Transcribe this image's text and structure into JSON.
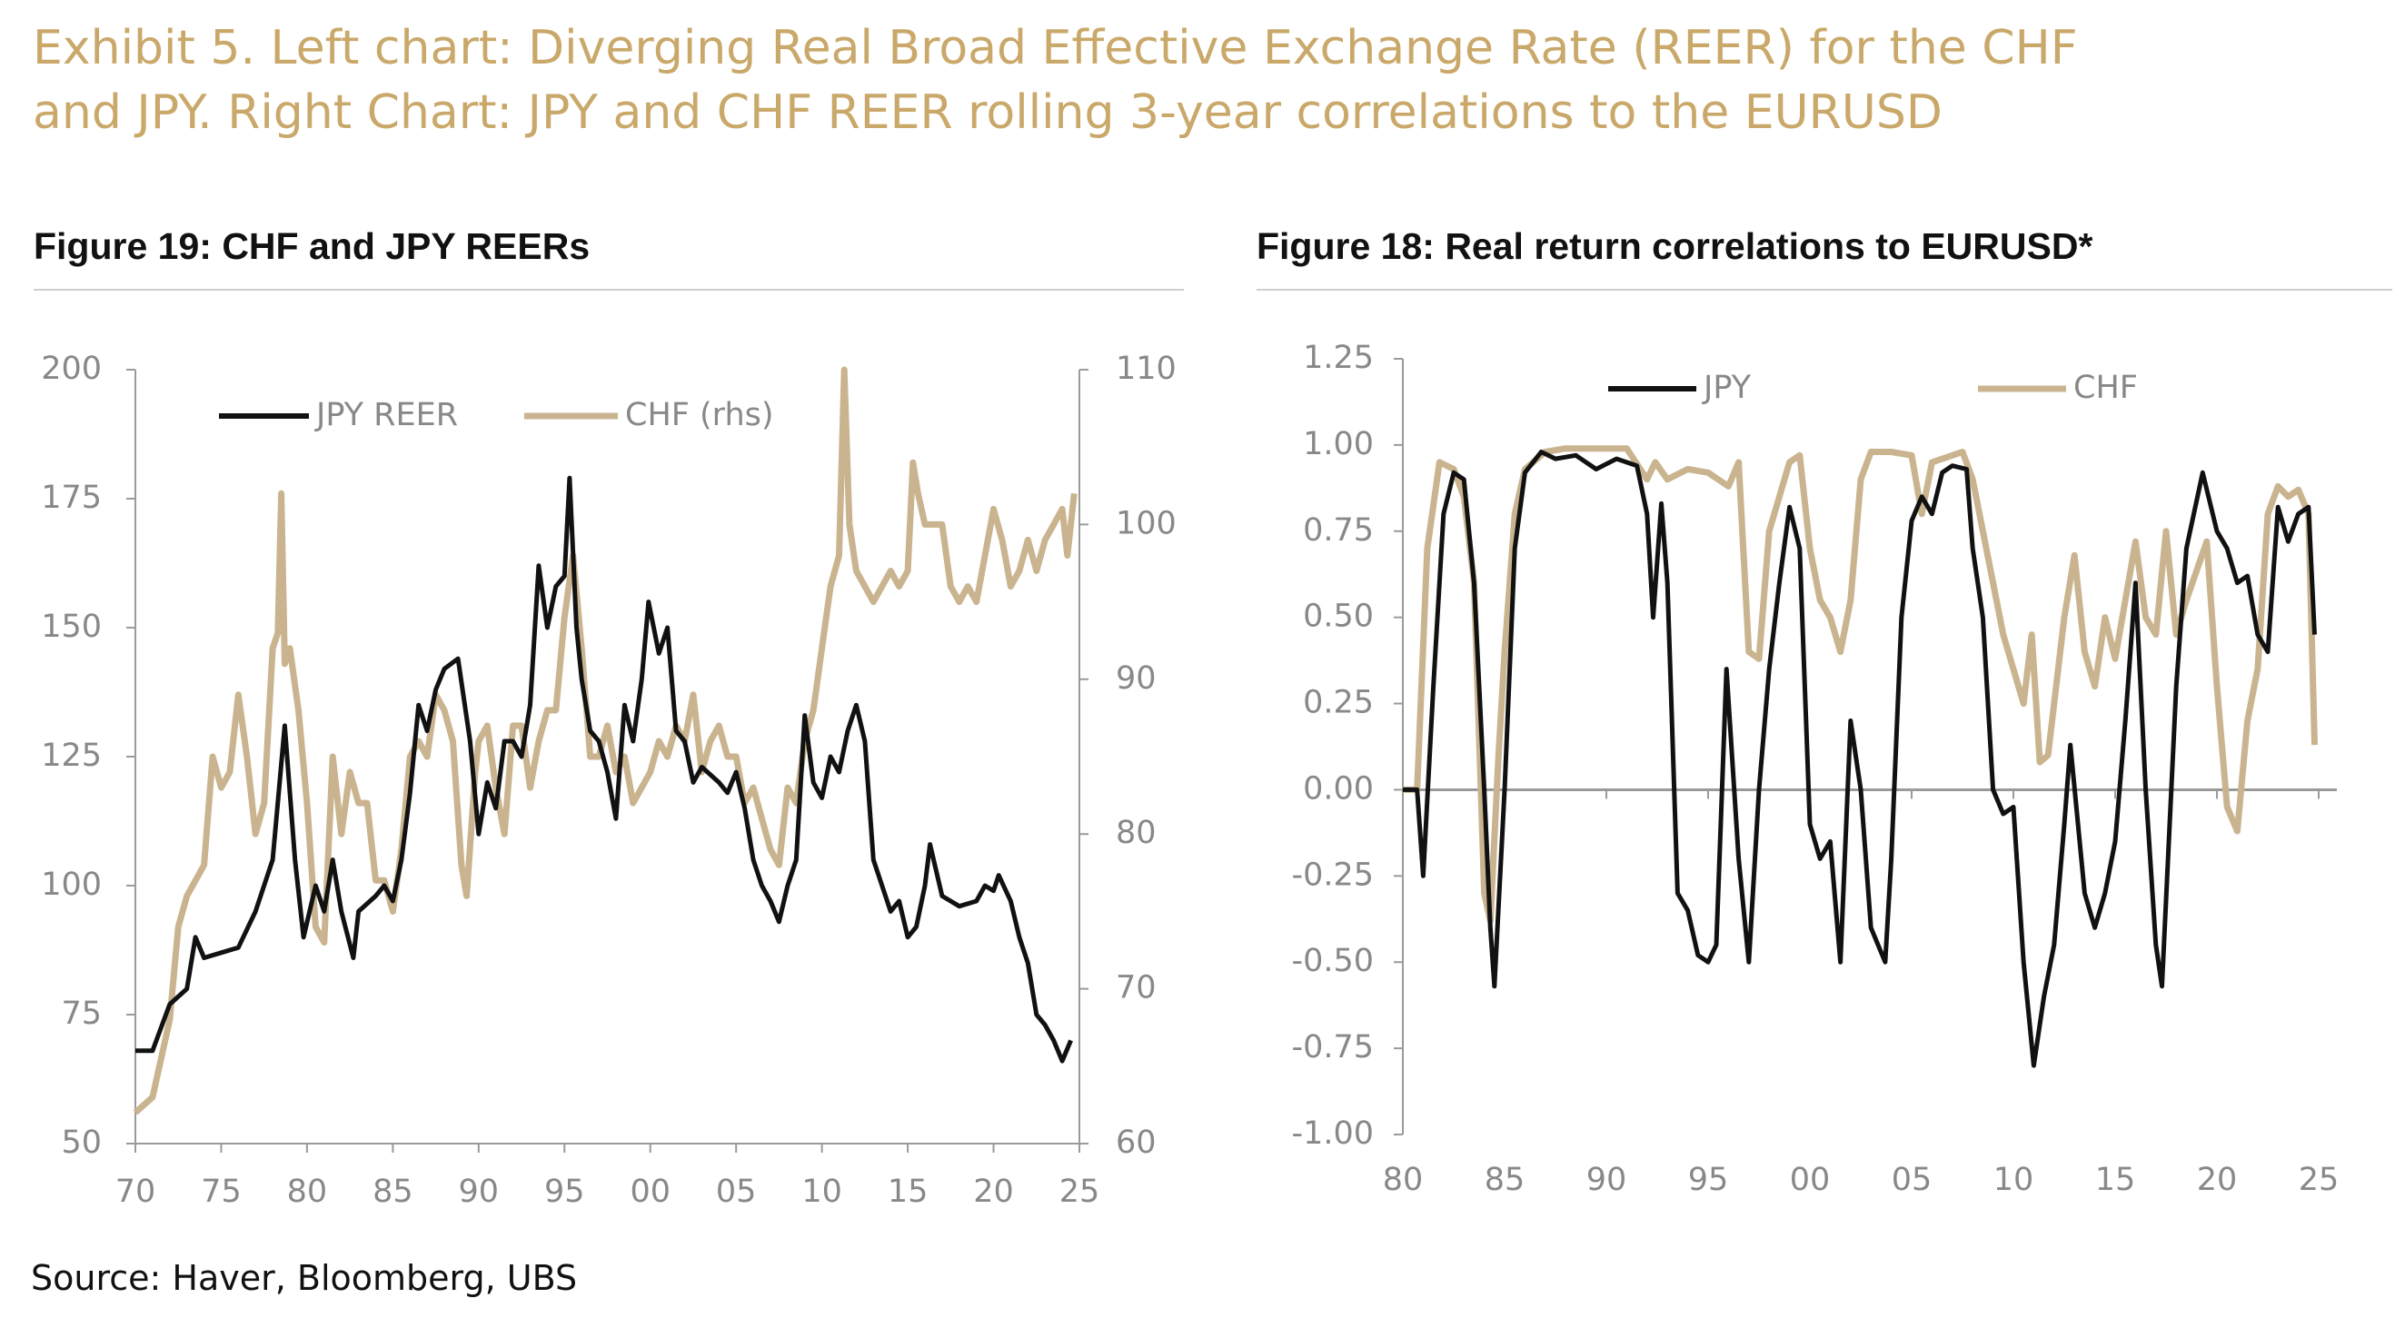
{
  "exhibit_title": [
    "Exhibit 5. Left chart: Diverging Real Broad Effective Exchange Rate (REER) for the CHF",
    "and JPY. Right Chart: JPY and CHF REER rolling 3-year correlations to the EURUSD"
  ],
  "source": "Source: Haver, Bloomberg, UBS",
  "colors": {
    "jpy": "#111111",
    "chf": "#c9b48f",
    "title": "#c9a86a"
  },
  "chart_data": [
    {
      "type": "line",
      "title": "Figure 19: CHF and JPY REERs",
      "xlim": [
        1970,
        2025
      ],
      "x_ticks": [
        "70",
        "75",
        "80",
        "85",
        "90",
        "95",
        "00",
        "05",
        "10",
        "15",
        "20",
        "25"
      ],
      "ylim": [
        50,
        200
      ],
      "y_ticks": [
        "200",
        "175",
        "150",
        "125",
        "100",
        "75",
        "50"
      ],
      "y2lim": [
        60,
        110
      ],
      "y2_ticks": [
        "110",
        "100",
        "90",
        "80",
        "70",
        "60"
      ],
      "legend": "top-left",
      "grid": false,
      "series": [
        {
          "name": "JPY REER",
          "axis": "left",
          "color": "#111111",
          "x": [
            1970,
            1971,
            1972,
            1973,
            1973.5,
            1974,
            1975,
            1976,
            1977,
            1978,
            1978.7,
            1979.3,
            1979.8,
            1980.5,
            1981,
            1981.5,
            1982,
            1982.7,
            1983,
            1984,
            1984.5,
            1985,
            1985.5,
            1986,
            1986.5,
            1987,
            1987.5,
            1988,
            1988.8,
            1989.5,
            1990,
            1990.5,
            1991,
            1991.5,
            1992,
            1992.5,
            1993,
            1993.5,
            1994,
            1994.5,
            1995,
            1995.3,
            1995.7,
            1996,
            1996.5,
            1997,
            1997.5,
            1998,
            1998.5,
            1999,
            1999.5,
            1999.9,
            2000.5,
            2001,
            2001.5,
            2002,
            2002.5,
            2003,
            2004,
            2004.5,
            2005,
            2005.5,
            2006,
            2006.5,
            2007,
            2007.5,
            2008,
            2008.5,
            2009,
            2009.5,
            2010,
            2010.5,
            2011,
            2011.5,
            2012,
            2012.5,
            2013,
            2013.5,
            2014,
            2014.5,
            2015,
            2015.5,
            2016,
            2016.3,
            2017,
            2018,
            2019,
            2019.5,
            2020,
            2020.3,
            2021,
            2021.5,
            2022,
            2022.5,
            2023,
            2023.5,
            2024,
            2024.5
          ],
          "y": [
            68,
            68,
            77,
            80,
            90,
            86,
            87,
            88,
            95,
            105,
            131,
            105,
            90,
            100,
            95,
            105,
            95,
            86,
            95,
            98,
            100,
            97,
            105,
            118,
            135,
            130,
            138,
            142,
            144,
            128,
            110,
            120,
            115,
            128,
            128,
            125,
            135,
            162,
            150,
            158,
            160,
            179,
            150,
            140,
            130,
            128,
            122,
            113,
            135,
            128,
            140,
            155,
            145,
            150,
            130,
            128,
            120,
            123,
            120,
            118,
            122,
            115,
            105,
            100,
            97,
            93,
            100,
            105,
            133,
            120,
            117,
            125,
            122,
            130,
            135,
            128,
            105,
            100,
            95,
            97,
            90,
            92,
            100,
            108,
            98,
            96,
            97,
            100,
            99,
            102,
            97,
            90,
            85,
            75,
            73,
            70,
            66,
            70
          ]
        },
        {
          "name": "CHF (rhs)",
          "axis": "right",
          "color": "#c9b48f",
          "x": [
            1970,
            1971,
            1972,
            1972.5,
            1973,
            1974,
            1974.5,
            1975,
            1975.5,
            1976,
            1976.5,
            1977,
            1977.5,
            1978,
            1978.3,
            1978.5,
            1978.7,
            1979,
            1979.5,
            1980,
            1980.5,
            1981,
            1981.5,
            1982,
            1982.5,
            1983,
            1983.5,
            1984,
            1984.5,
            1985,
            1985.5,
            1986,
            1986.5,
            1987,
            1987.5,
            1988,
            1988.5,
            1989,
            1989.3,
            1989.8,
            1990,
            1990.5,
            1991,
            1991.5,
            1992,
            1992.5,
            1993,
            1993.5,
            1994,
            1994.5,
            1995,
            1995.5,
            1996,
            1996.5,
            1997,
            1997.5,
            1998,
            1998.5,
            1999,
            1999.5,
            2000,
            2000.5,
            2001,
            2001.5,
            2002,
            2002.5,
            2003,
            2003.5,
            2004,
            2004.5,
            2005,
            2005.5,
            2006,
            2006.5,
            2007,
            2007.5,
            2008,
            2008.5,
            2009,
            2009.5,
            2010,
            2010.5,
            2011,
            2011.3,
            2011.6,
            2012,
            2012.5,
            2013,
            2013.5,
            2014,
            2014.5,
            2015,
            2015.3,
            2015.6,
            2016,
            2016.5,
            2017,
            2017.5,
            2018,
            2018.5,
            2019,
            2019.5,
            2020,
            2020.5,
            2021,
            2021.5,
            2022,
            2022.5,
            2023,
            2023.5,
            2024,
            2024.3,
            2024.7
          ],
          "y": [
            62,
            63,
            68,
            74,
            76,
            78,
            85,
            83,
            84,
            89,
            85,
            80,
            82,
            92,
            93,
            102,
            91,
            92,
            88,
            82,
            74,
            73,
            85,
            80,
            84,
            82,
            82,
            77,
            77,
            75,
            79,
            85,
            86,
            85,
            89,
            88,
            86,
            78,
            76,
            84,
            86,
            87,
            83,
            80,
            87,
            87,
            83,
            86,
            88,
            88,
            94,
            98,
            92,
            85,
            85,
            87,
            84,
            85,
            82,
            83,
            84,
            86,
            85,
            87,
            86,
            89,
            84,
            86,
            87,
            85,
            85,
            82,
            83,
            81,
            79,
            78,
            83,
            82,
            86,
            88,
            92,
            96,
            98,
            110,
            100,
            97,
            96,
            95,
            96,
            97,
            96,
            97,
            104,
            102,
            100,
            100,
            100,
            96,
            95,
            96,
            95,
            98,
            101,
            99,
            96,
            97,
            99,
            97,
            99,
            100,
            101,
            98,
            102
          ]
        }
      ]
    },
    {
      "type": "line",
      "title": "Figure 18: Real return correlations to EURUSD*",
      "xlim": [
        1980,
        2025
      ],
      "x_ticks": [
        "80",
        "85",
        "90",
        "95",
        "00",
        "05",
        "10",
        "15",
        "20",
        "25"
      ],
      "ylim": [
        -1.0,
        1.25
      ],
      "y_ticks": [
        "1.25",
        "1.00",
        "0.75",
        "0.50",
        "0.25",
        "0.00",
        "-0.25",
        "-0.50",
        "-0.75",
        "-1.00"
      ],
      "legend": "top",
      "grid": false,
      "series": [
        {
          "name": "JPY",
          "color": "#111111",
          "x": [
            1980,
            1980.7,
            1981,
            1981.5,
            1982,
            1982.5,
            1983,
            1983.5,
            1984,
            1984.3,
            1984.5,
            1985,
            1985.5,
            1986,
            1986.8,
            1987.5,
            1988.5,
            1989.5,
            1990.5,
            1991.5,
            1992,
            1992.3,
            1992.7,
            1993,
            1993.5,
            1994,
            1994.5,
            1995,
            1995.4,
            1995.9,
            1996.5,
            1997,
            1997.5,
            1998,
            1998.5,
            1999,
            1999.5,
            2000,
            2000.5,
            2001,
            2001.5,
            2002,
            2002.5,
            2003,
            2003.7,
            2004,
            2004.5,
            2005,
            2005.5,
            2006,
            2006.5,
            2007,
            2007.7,
            2008,
            2008.5,
            2009,
            2009.5,
            2010,
            2010.5,
            2011,
            2011.5,
            2012,
            2012.5,
            2012.8,
            2013.5,
            2014,
            2014.5,
            2015,
            2015.5,
            2016,
            2016.5,
            2017,
            2017.3,
            2018,
            2018.5,
            2019.3,
            2020,
            2020.5,
            2021,
            2021.5,
            2022,
            2022.5,
            2023,
            2023.5,
            2024,
            2024.5,
            2024.8
          ],
          "y": [
            0,
            0,
            -0.25,
            0.3,
            0.8,
            0.92,
            0.9,
            0.6,
            0,
            -0.4,
            -0.57,
            0,
            0.7,
            0.92,
            0.98,
            0.96,
            0.97,
            0.93,
            0.96,
            0.94,
            0.8,
            0.5,
            0.83,
            0.6,
            -0.3,
            -0.35,
            -0.48,
            -0.5,
            -0.45,
            0.35,
            -0.2,
            -0.5,
            0,
            0.35,
            0.6,
            0.82,
            0.7,
            -0.1,
            -0.2,
            -0.15,
            -0.5,
            0.2,
            0,
            -0.4,
            -0.5,
            -0.2,
            0.5,
            0.78,
            0.85,
            0.8,
            0.92,
            0.94,
            0.93,
            0.7,
            0.5,
            0,
            -0.07,
            -0.05,
            -0.5,
            -0.8,
            -0.6,
            -0.45,
            -0.1,
            0.13,
            -0.3,
            -0.4,
            -0.3,
            -0.15,
            0.2,
            0.6,
            0,
            -0.45,
            -0.57,
            0.3,
            0.7,
            0.92,
            0.75,
            0.7,
            0.6,
            0.62,
            0.45,
            0.4,
            0.82,
            0.72,
            0.8,
            0.82,
            0.45
          ]
        },
        {
          "name": "CHF",
          "color": "#c9b48f",
          "x": [
            1980,
            1980.7,
            1981.2,
            1981.8,
            1982.5,
            1983,
            1983.5,
            1984,
            1984.3,
            1984.7,
            1985,
            1985.5,
            1986,
            1987,
            1988,
            1989,
            1990,
            1991,
            1992,
            1992.4,
            1993,
            1994,
            1995,
            1996,
            1996.5,
            1997,
            1997.5,
            1998,
            1999,
            1999.5,
            2000,
            2000.5,
            2001,
            2001.5,
            2002,
            2002.5,
            2003,
            2004,
            2005,
            2005.5,
            2006,
            2007,
            2007.5,
            2008,
            2009,
            2009.5,
            2010,
            2010.5,
            2010.9,
            2011.3,
            2011.7,
            2012.5,
            2013,
            2013.5,
            2014,
            2014.5,
            2015,
            2015.5,
            2016,
            2016.5,
            2017,
            2017.5,
            2018,
            2018.5,
            2019.5,
            2020,
            2020.5,
            2021,
            2021.5,
            2022,
            2022.5,
            2023,
            2023.5,
            2024,
            2024.5,
            2024.8
          ],
          "y": [
            0,
            0,
            0.7,
            0.95,
            0.93,
            0.85,
            0.6,
            -0.3,
            -0.38,
            0.1,
            0.4,
            0.8,
            0.93,
            0.98,
            0.99,
            0.99,
            0.99,
            0.99,
            0.9,
            0.95,
            0.9,
            0.93,
            0.92,
            0.88,
            0.95,
            0.4,
            0.38,
            0.75,
            0.95,
            0.97,
            0.7,
            0.55,
            0.5,
            0.4,
            0.55,
            0.9,
            0.98,
            0.98,
            0.97,
            0.8,
            0.95,
            0.97,
            0.98,
            0.9,
            0.6,
            0.45,
            0.35,
            0.25,
            0.45,
            0.08,
            0.1,
            0.5,
            0.68,
            0.4,
            0.3,
            0.5,
            0.38,
            0.55,
            0.72,
            0.5,
            0.45,
            0.75,
            0.45,
            0.55,
            0.72,
            0.3,
            -0.05,
            -0.12,
            0.2,
            0.35,
            0.8,
            0.88,
            0.85,
            0.87,
            0.8,
            0.13
          ]
        }
      ]
    }
  ]
}
